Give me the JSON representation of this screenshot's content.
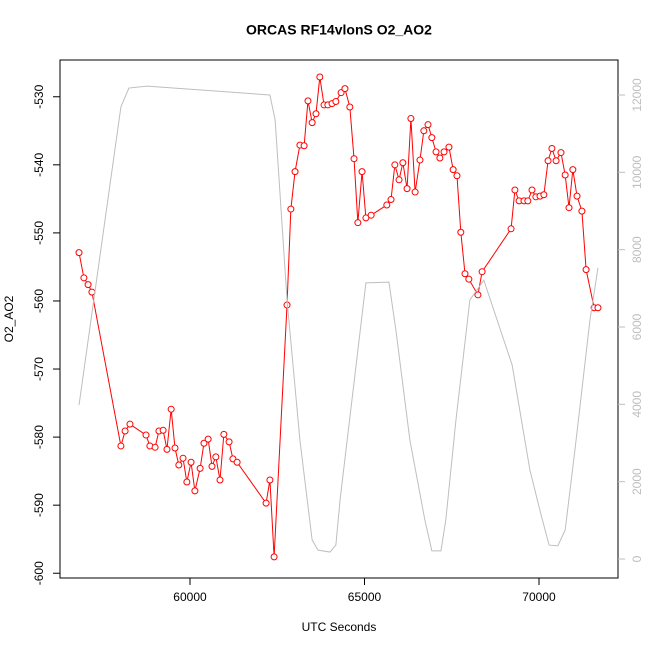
{
  "chart_data": {
    "type": "line",
    "title": "ORCAS RF14vlonS O2_AO2",
    "xlabel": "UTC Seconds",
    "ylabel": "O2_AO2",
    "xlim": [
      56275,
      72264
    ],
    "ylim": [
      -600.7,
      -524.6
    ],
    "y2lim": [
      -491,
      12905
    ],
    "xticks": [
      60000,
      65000,
      70000
    ],
    "yticks": [
      -600,
      -590,
      -580,
      -570,
      -560,
      -550,
      -540,
      -530
    ],
    "y2ticks": [
      0,
      2000,
      4000,
      6000,
      8000,
      10000,
      12000
    ],
    "y2color": "#bebebe",
    "series": [
      {
        "color": "#ff0000",
        "markers": true,
        "x": [
          56820,
          56960,
          57080,
          57190,
          58020,
          58140,
          58280,
          58740,
          58850,
          59000,
          59110,
          59230,
          59340,
          59460,
          59570,
          59680,
          59800,
          59910,
          60030,
          60140,
          60290,
          60400,
          60520,
          60630,
          60740,
          60860,
          60970,
          61120,
          61230,
          61350,
          62180,
          62290,
          62410,
          62780,
          62890,
          63010,
          63150,
          63270,
          63380,
          63500,
          63610,
          63720,
          63840,
          63950,
          64070,
          64180,
          64330,
          64440,
          64580,
          64700,
          64810,
          64930,
          65040,
          65190,
          65640,
          65760,
          65870,
          65990,
          66100,
          66220,
          66330,
          66450,
          66590,
          66700,
          66820,
          66930,
          67050,
          67160,
          67280,
          67420,
          67540,
          67650,
          67760,
          67880,
          67990,
          68250,
          68370,
          69200,
          69310,
          69430,
          69570,
          69680,
          69800,
          69910,
          70030,
          70140,
          70260,
          70370,
          70490,
          70630,
          70750,
          70860,
          70970,
          71090,
          71230,
          71350,
          71580,
          71690
        ],
        "values": [
          -552.9,
          -556.6,
          -557.6,
          -558.7,
          -581.3,
          -579.1,
          -578.1,
          -579.7,
          -581.3,
          -581.5,
          -579.1,
          -579.0,
          -581.8,
          -575.9,
          -581.6,
          -584.1,
          -583.1,
          -586.6,
          -583.7,
          -587.9,
          -584.6,
          -580.9,
          -580.3,
          -584.3,
          -582.9,
          -586.3,
          -579.6,
          -580.7,
          -583.2,
          -583.7,
          -589.7,
          -586.3,
          -597.6,
          -560.6,
          -546.5,
          -541.0,
          -537.1,
          -537.2,
          -530.6,
          -533.8,
          -532.5,
          -527.1,
          -531.2,
          -531.2,
          -531.0,
          -530.7,
          -529.4,
          -528.8,
          -531.5,
          -539.1,
          -548.5,
          -541.0,
          -547.8,
          -547.4,
          -545.9,
          -545.1,
          -540.0,
          -542.2,
          -539.7,
          -543.5,
          -533.2,
          -544.0,
          -539.3,
          -535.0,
          -534.1,
          -536.0,
          -538.1,
          -539.0,
          -538.1,
          -537.4,
          -540.7,
          -541.6,
          -549.9,
          -556.0,
          -556.8,
          -559.1,
          -555.7,
          -549.4,
          -543.7,
          -545.3,
          -545.3,
          -545.3,
          -543.7,
          -544.7,
          -544.6,
          -544.4,
          -539.4,
          -537.6,
          -539.4,
          -538.2,
          -541.5,
          -546.3,
          -540.7,
          -544.6,
          -546.8,
          -555.4,
          -561.0,
          -561.0
        ]
      },
      {
        "color": "#bebebe",
        "axis": "y2",
        "markers": false,
        "x": [
          56820,
          58020,
          58250,
          58770,
          62290,
          62440,
          62780,
          63150,
          63500,
          63670,
          64010,
          64180,
          64300,
          65040,
          65700,
          65900,
          66300,
          66730,
          66930,
          67190,
          67330,
          67620,
          68020,
          68420,
          69230,
          69740,
          70060,
          70290,
          70540,
          70750,
          71030,
          71460,
          71690
        ],
        "values": [
          3980,
          11690,
          12180,
          12230,
          12000,
          11350,
          6700,
          3070,
          490,
          230,
          180,
          360,
          1530,
          7140,
          7160,
          5920,
          3080,
          1010,
          210,
          210,
          1010,
          3590,
          6700,
          7210,
          5020,
          2300,
          1140,
          360,
          340,
          750,
          2820,
          6180,
          7530
        ]
      }
    ]
  }
}
